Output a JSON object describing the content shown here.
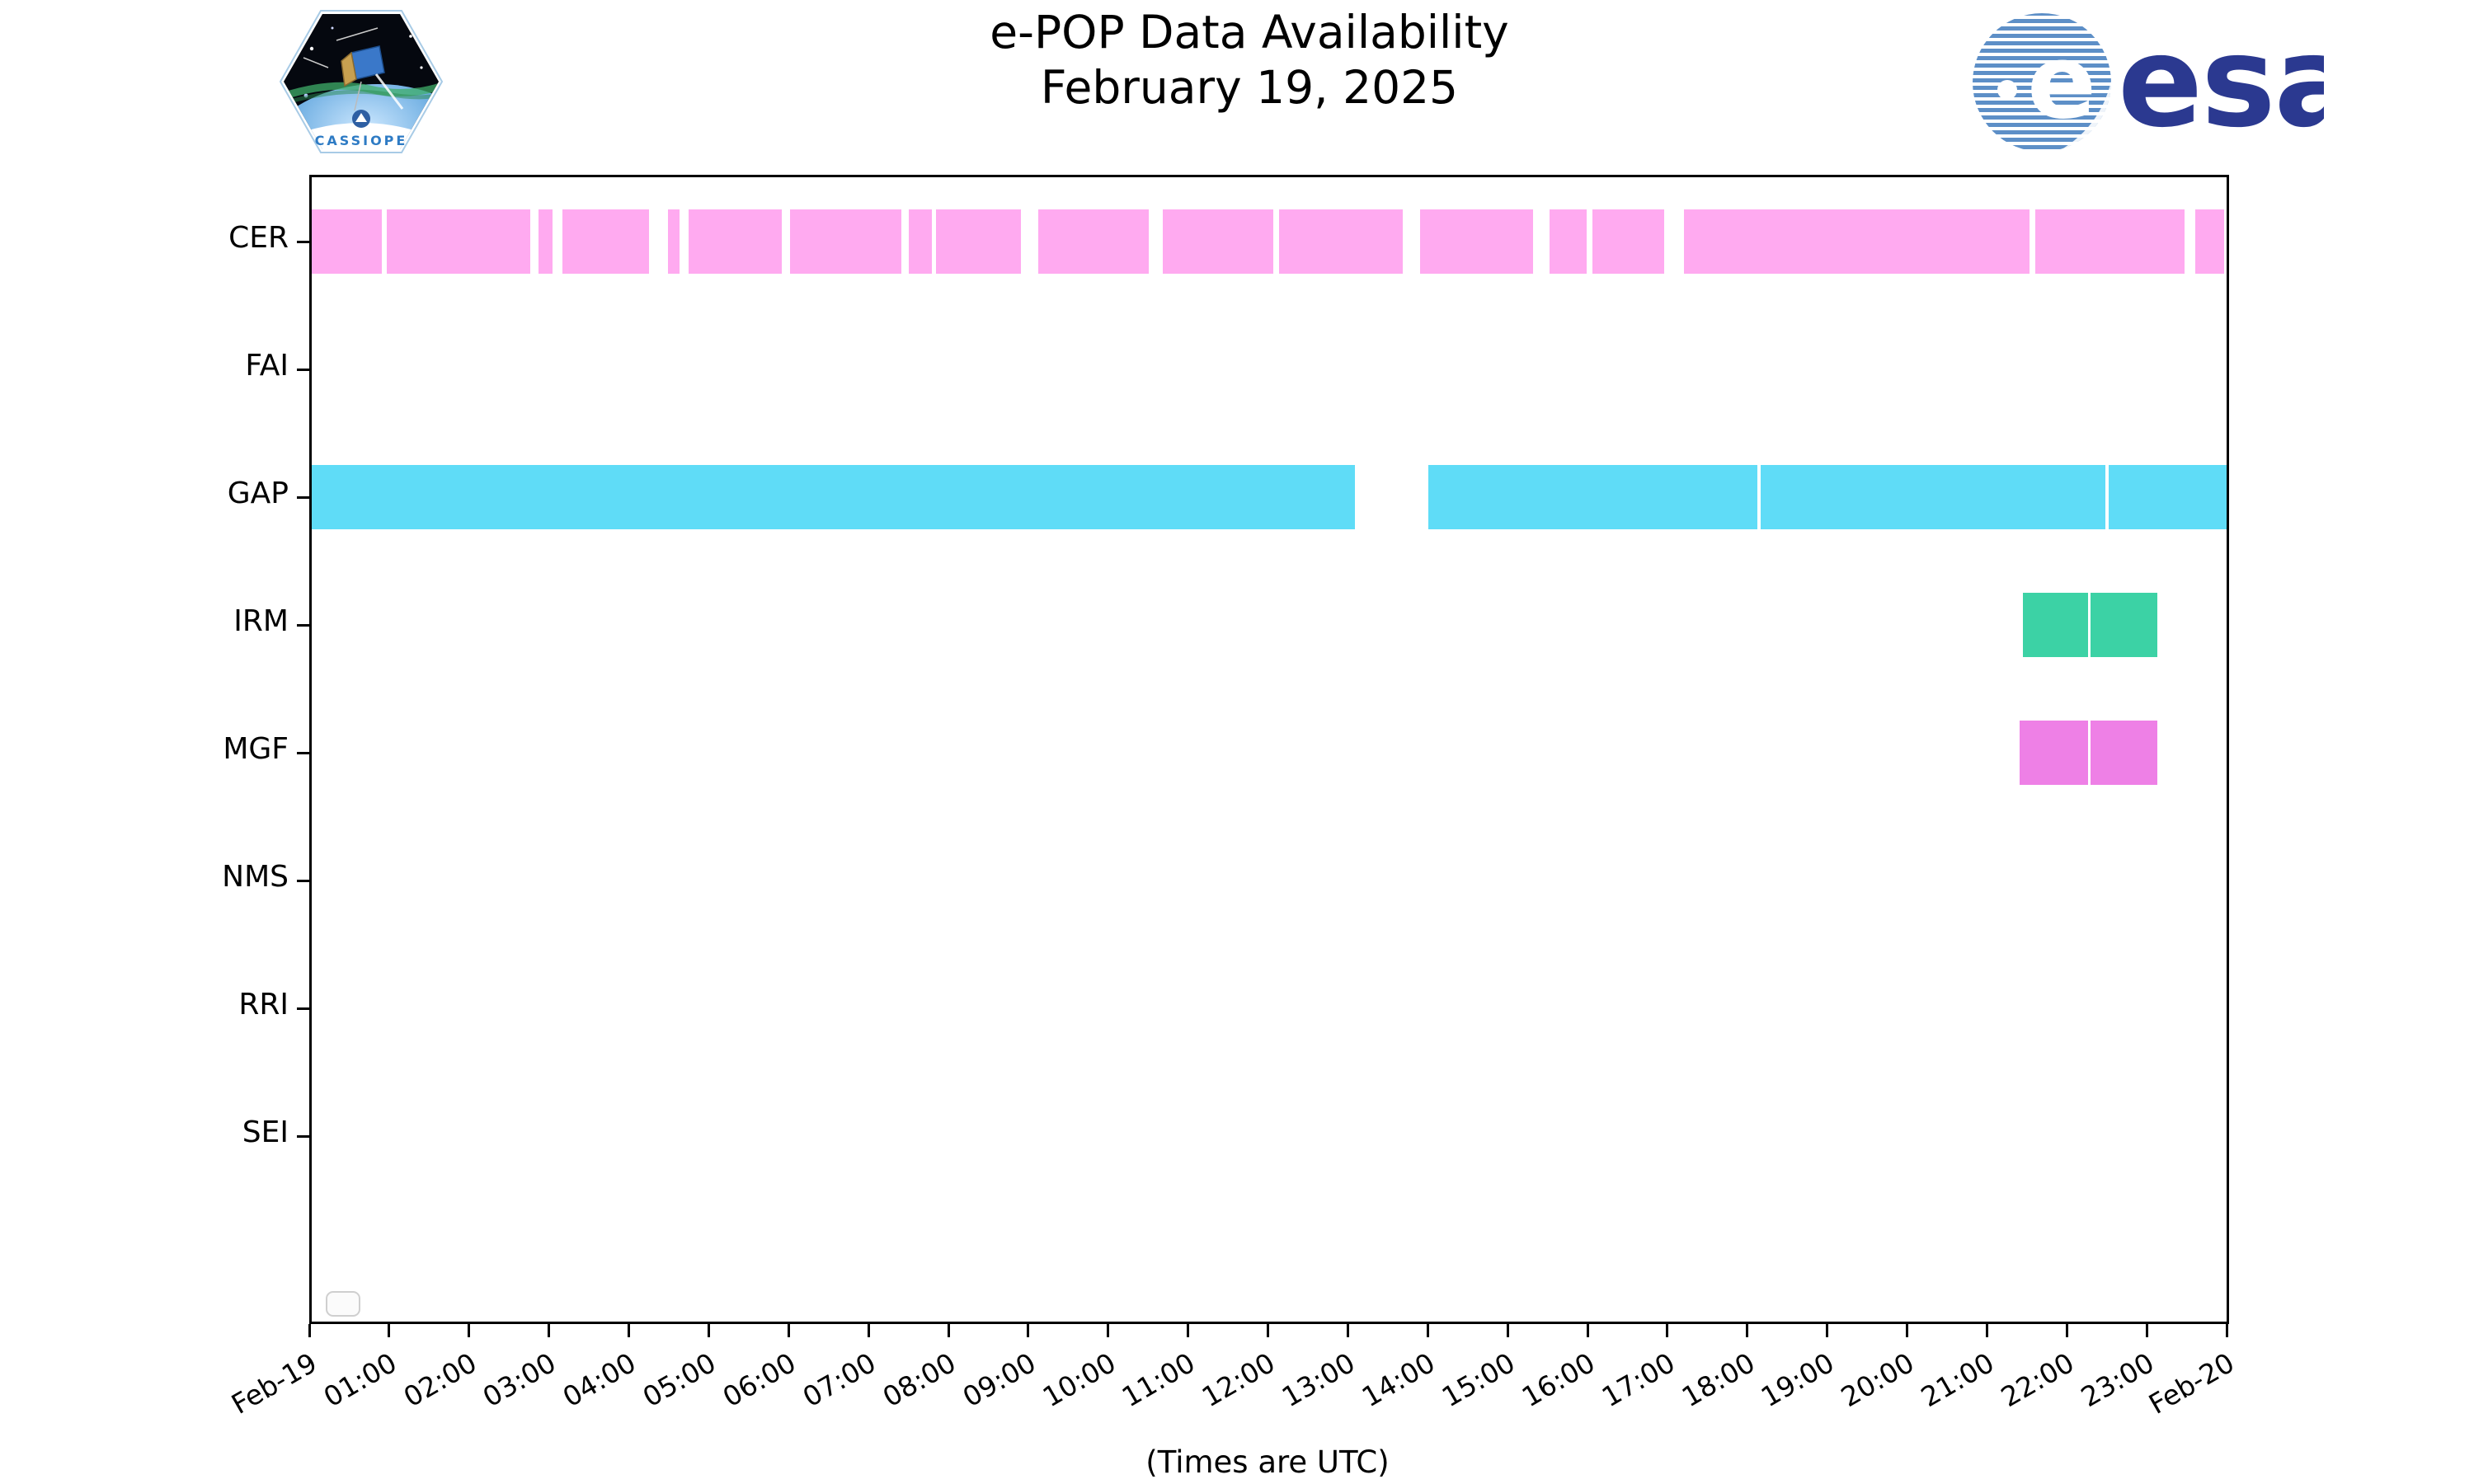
{
  "header": {
    "title": "e-POP Data Availability",
    "subtitle": "February 19, 2025",
    "cassiope_patch_text": "CASSIOPE",
    "esa_wordmark": "esa",
    "esa_ball_letter": "e"
  },
  "footer": {
    "xlabel": "(Times are UTC)"
  },
  "colors": {
    "cer_bar": "#ffaaf0",
    "gap_bar": "#5fdcf7",
    "irm_bar": "#3cd2a5",
    "mgf_bar": "#ee80e6",
    "axis": "#000000",
    "background": "#ffffff",
    "esa_blue": "#2b3990",
    "esa_stripe_blue": "#5d8fc7",
    "cassiope_text_blue": "#2e7bc4"
  },
  "chart_data": {
    "type": "bar",
    "subtype": "horizontal-broken-bar-availability-timeline",
    "title": "e-POP Data Availability",
    "subtitle": "February 19, 2025",
    "xlabel": "(Times are UTC)",
    "grid": false,
    "x_axis": {
      "start_label": "Feb-19",
      "end_label": "Feb-20",
      "units": "hours UTC",
      "range_hours": [
        0,
        24
      ],
      "tick_interval_hours": 1,
      "tick_labels": [
        "Feb-19",
        "01:00",
        "02:00",
        "03:00",
        "04:00",
        "05:00",
        "06:00",
        "07:00",
        "08:00",
        "09:00",
        "10:00",
        "11:00",
        "12:00",
        "13:00",
        "14:00",
        "15:00",
        "16:00",
        "17:00",
        "18:00",
        "19:00",
        "20:00",
        "21:00",
        "22:00",
        "23:00",
        "Feb-20"
      ]
    },
    "rows": [
      {
        "label": "CER",
        "color": "#ffaaf0",
        "segments_hours": [
          [
            0.0,
            0.91
          ],
          [
            0.97,
            2.77
          ],
          [
            2.87,
            3.05
          ],
          [
            3.17,
            4.25
          ],
          [
            4.49,
            4.63
          ],
          [
            4.75,
            5.91
          ],
          [
            6.02,
            7.41
          ],
          [
            7.5,
            7.79
          ],
          [
            7.84,
            8.91
          ],
          [
            9.12,
            10.51
          ],
          [
            10.68,
            12.07
          ],
          [
            12.14,
            13.69
          ],
          [
            13.9,
            15.32
          ],
          [
            15.52,
            15.99
          ],
          [
            16.06,
            16.96
          ],
          [
            17.21,
            21.53
          ],
          [
            21.6,
            23.47
          ],
          [
            23.61,
            23.97
          ]
        ]
      },
      {
        "label": "FAI",
        "color": null,
        "segments_hours": []
      },
      {
        "label": "GAP",
        "color": "#5fdcf7",
        "segments_hours": [
          [
            0.0,
            13.09
          ],
          [
            14.01,
            18.13
          ],
          [
            18.17,
            22.48
          ],
          [
            22.52,
            24.0
          ]
        ]
      },
      {
        "label": "IRM",
        "color": "#3cd2a5",
        "segments_hours": [
          [
            21.45,
            22.27
          ],
          [
            22.3,
            23.13
          ]
        ]
      },
      {
        "label": "MGF",
        "color": "#ee80e6",
        "segments_hours": [
          [
            21.41,
            22.27
          ],
          [
            22.3,
            23.13
          ]
        ]
      },
      {
        "label": "NMS",
        "color": null,
        "segments_hours": []
      },
      {
        "label": "RRI",
        "color": null,
        "segments_hours": []
      },
      {
        "label": "SEI",
        "color": null,
        "segments_hours": []
      }
    ],
    "legend": {
      "visible": true,
      "entries": []
    }
  }
}
